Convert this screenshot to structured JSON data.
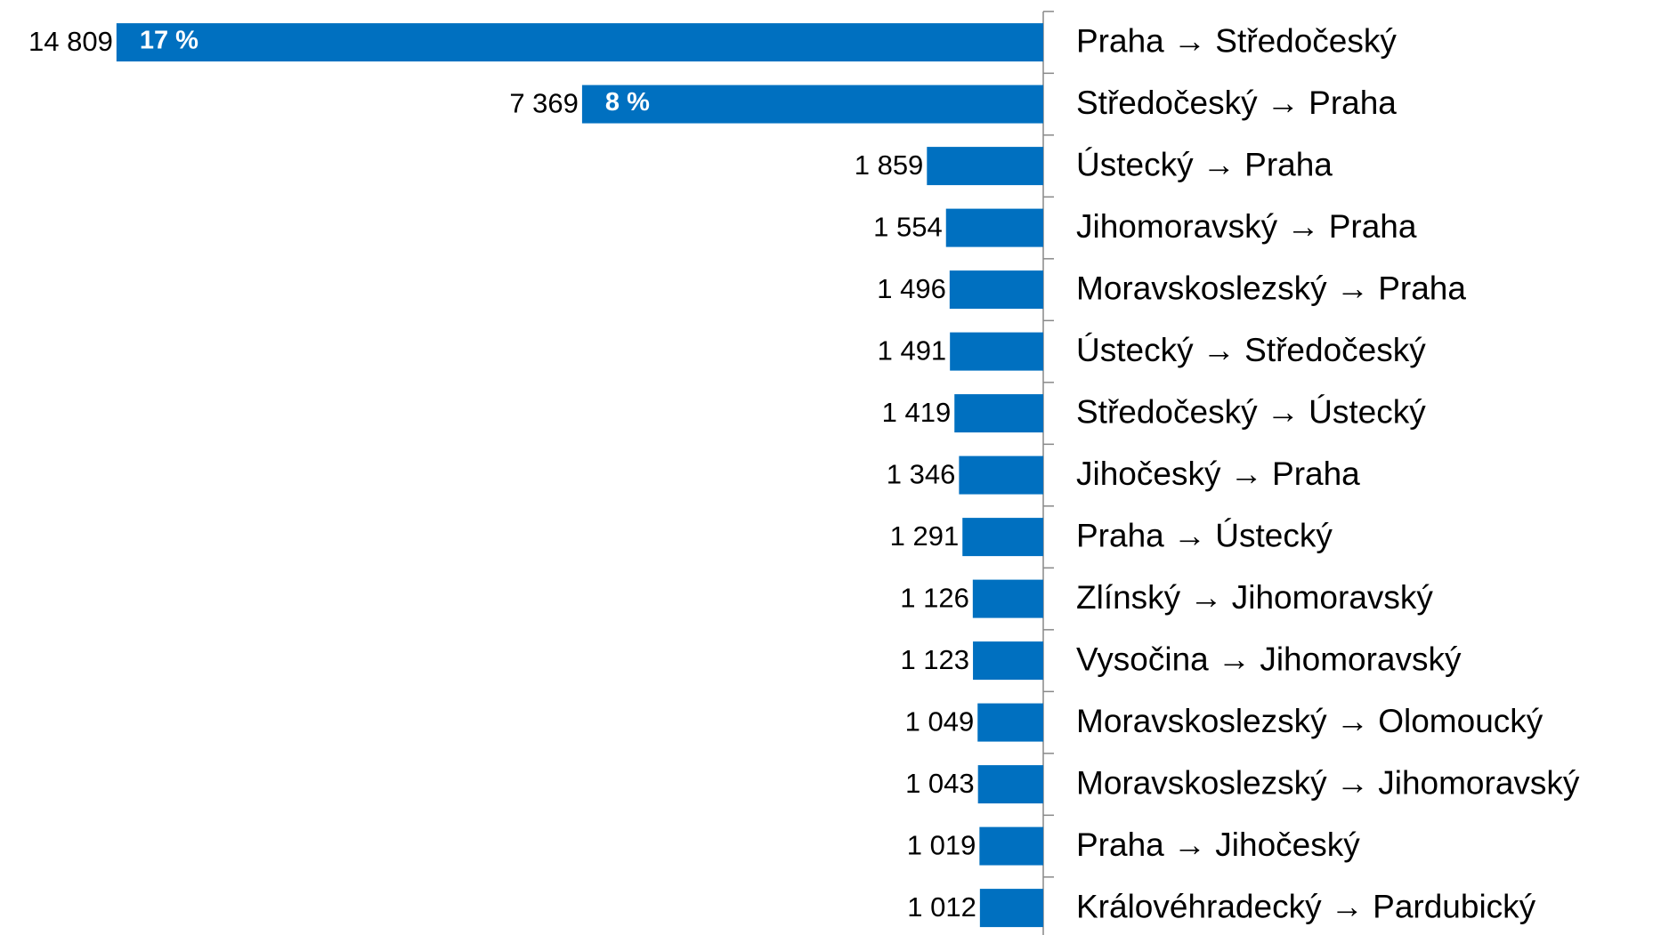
{
  "chart_data": {
    "type": "hbar",
    "categories": [
      "Praha → Středočeský",
      "Středočeský → Praha",
      "Ústecký → Praha",
      "Jihomoravský → Praha",
      "Moravskoslezský → Praha",
      "Ústecký → Středočeský",
      "Středočeský → Ústecký",
      "Jihočeský → Praha",
      "Praha → Ústecký",
      "Zlínský → Jihomoravský",
      "Vysočina → Jihomoravský",
      "Moravskoslezský → Olomoucký",
      "Moravskoslezský → Jihomoravský",
      "Praha → Jihočeský",
      "Královéhradecký → Pardubický"
    ],
    "values": [
      14809,
      7369,
      1859,
      1554,
      1496,
      1491,
      1419,
      1346,
      1291,
      1126,
      1123,
      1049,
      1043,
      1019,
      1012
    ],
    "value_labels": [
      "14 809",
      "7 369",
      "1 859",
      "1 554",
      "1 496",
      "1 491",
      "1 419",
      "1 346",
      "1 291",
      "1 126",
      "1 123",
      "1 049",
      "1 043",
      "1 019",
      "1 012"
    ],
    "share_labels": [
      "17 %",
      "8 %"
    ],
    "color": "#0070c0",
    "xlim": [
      0,
      16670
    ]
  }
}
